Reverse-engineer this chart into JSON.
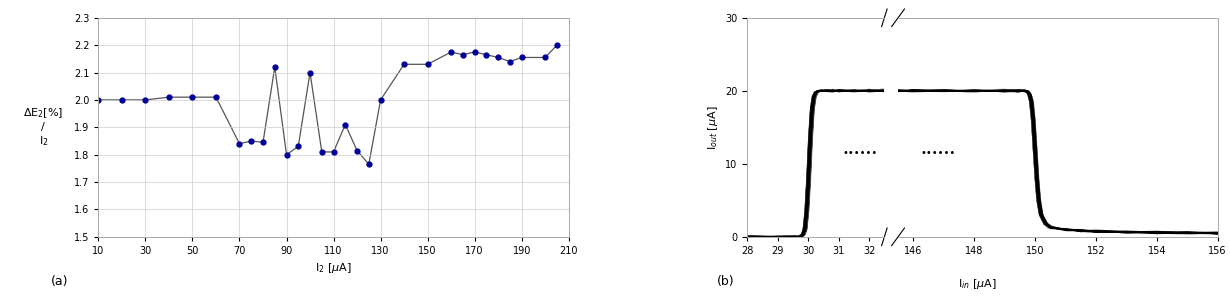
{
  "plot_a": {
    "x": [
      10,
      20,
      30,
      40,
      50,
      60,
      70,
      75,
      80,
      85,
      90,
      95,
      100,
      105,
      110,
      115,
      120,
      125,
      130,
      140,
      150,
      160,
      165,
      170,
      175,
      180,
      185,
      190,
      200,
      205
    ],
    "y": [
      2.0,
      2.0,
      2.0,
      2.01,
      2.01,
      2.01,
      1.84,
      1.85,
      1.845,
      2.12,
      1.8,
      1.83,
      2.1,
      1.81,
      1.81,
      1.91,
      1.815,
      1.765,
      2.0,
      2.13,
      2.13,
      2.175,
      2.165,
      2.175,
      2.165,
      2.155,
      2.14,
      2.155,
      2.155,
      2.2
    ],
    "color": "#000099",
    "marker": "o",
    "markersize": 3.5,
    "linecolor": "#555555",
    "linewidth": 0.9,
    "xlabel": "I$_2$ [$\\mu$A]",
    "ylabel": "$\\Delta$E$_2$[%]\n/\nI$_2$",
    "xlim": [
      10,
      210
    ],
    "ylim": [
      1.5,
      2.3
    ],
    "xticks": [
      10,
      30,
      50,
      70,
      90,
      110,
      130,
      150,
      170,
      190,
      210
    ],
    "yticks": [
      1.5,
      1.6,
      1.7,
      1.8,
      1.9,
      2.0,
      2.1,
      2.2,
      2.3
    ],
    "label": "(a)"
  },
  "plot_b": {
    "xlabel": "I$_{in}$ [$\\mu$A]",
    "ylabel": "I$_{out}$ [$\\mu$A]",
    "ylim": [
      0,
      30
    ],
    "yticks": [
      0,
      10,
      20,
      30
    ],
    "left_xlim": [
      28,
      32.5
    ],
    "right_xlim": [
      145.5,
      156
    ],
    "left_xticks": [
      28,
      29,
      30,
      31,
      32
    ],
    "right_xticks": [
      146,
      148,
      150,
      152,
      154,
      156
    ],
    "dots_x": 32.0,
    "dots_y": 11.5,
    "n_traces": 100,
    "label": "(b)"
  }
}
